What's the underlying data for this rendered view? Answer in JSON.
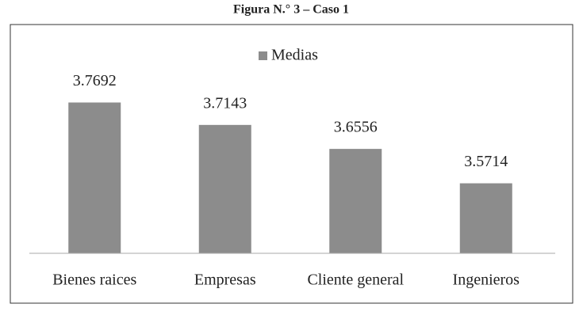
{
  "chart_data": {
    "type": "bar",
    "title": "Figura N.° 3 – Caso 1",
    "categories": [
      "Bienes raices",
      "Empresas",
      "Cliente general",
      "Ingenieros"
    ],
    "series": [
      {
        "name": "Medias",
        "color": "#8c8c8c",
        "values": [
          3.7692,
          3.7143,
          3.6556,
          3.5714
        ]
      }
    ],
    "ylim": [
      3.4,
      3.9
    ]
  }
}
